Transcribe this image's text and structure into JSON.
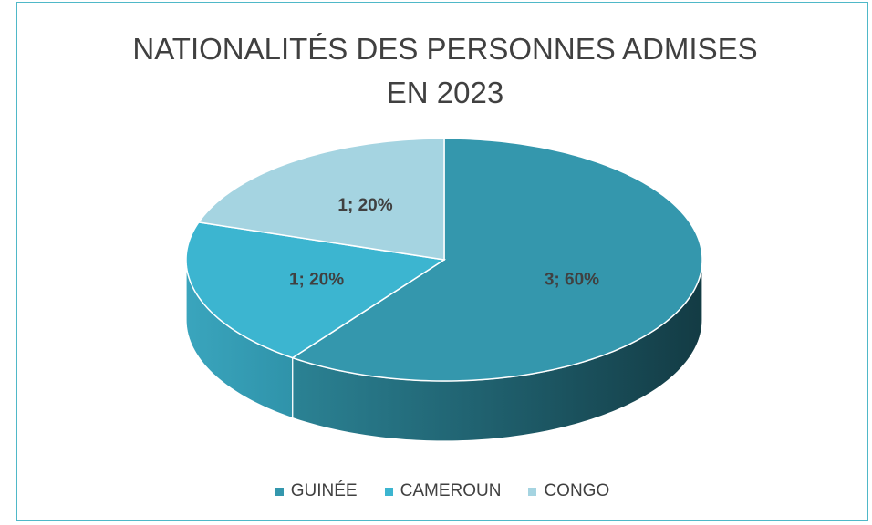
{
  "chart_data": {
    "type": "pie3d",
    "title": "NATIONALITÉS DES PERSONNES ADMISES EN 2023",
    "categories": [
      "GUINÉE",
      "CAMEROUN",
      "CONGO"
    ],
    "values": [
      3,
      1,
      1
    ],
    "value_labels": [
      "3; 60%",
      "1; 20%",
      "1; 20%"
    ],
    "colors": [
      "#3497ad",
      "#3cb5d0",
      "#a5d4e1"
    ],
    "legend": "bottom"
  }
}
